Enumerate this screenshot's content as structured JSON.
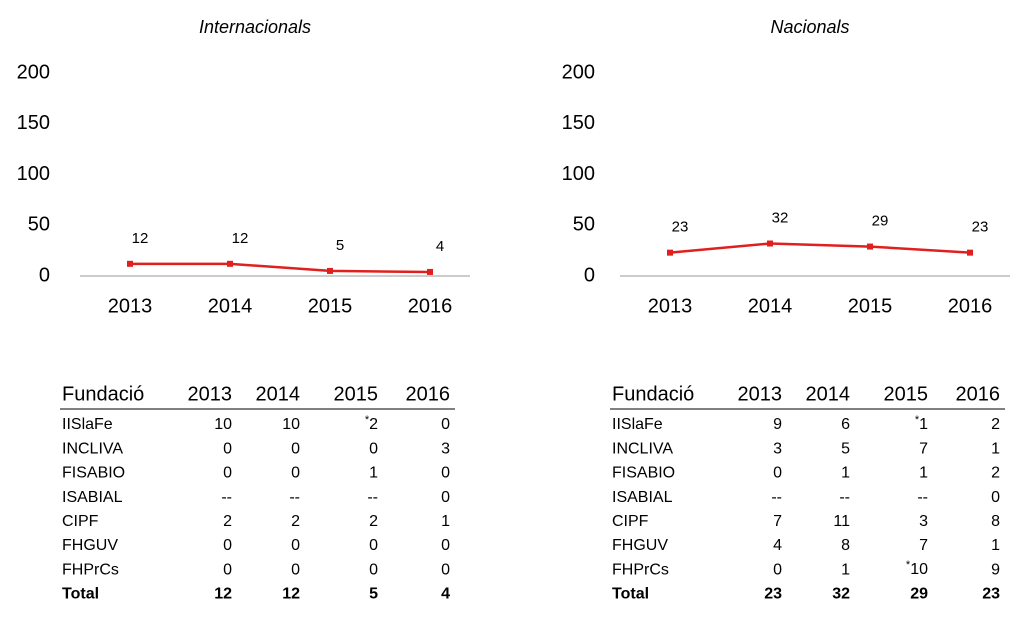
{
  "chart_data": [
    {
      "type": "line",
      "title": "Internacionals",
      "categories": [
        "2013",
        "2014",
        "2015",
        "2016"
      ],
      "series": [
        {
          "name": "Internacionals",
          "color": "#e0201e",
          "values": [
            12,
            12,
            5,
            4
          ]
        }
      ],
      "ylim": [
        0,
        200
      ],
      "yticks": [
        0,
        50,
        100,
        150,
        200
      ],
      "grid": false
    },
    {
      "type": "line",
      "title": "Nacionals",
      "categories": [
        "2013",
        "2014",
        "2015",
        "2016"
      ],
      "series": [
        {
          "name": "Nacionals",
          "color": "#e0201e",
          "values": [
            23,
            32,
            29,
            23
          ]
        }
      ],
      "ylim": [
        0,
        200
      ],
      "yticks": [
        0,
        50,
        100,
        150,
        200
      ],
      "grid": false
    }
  ],
  "tables": [
    {
      "header": [
        "Fundació",
        "2013",
        "2014",
        "2015",
        "2016"
      ],
      "rows": [
        [
          "IISlaFe",
          "10",
          "10",
          {
            "note": "*",
            "text": "2"
          },
          "0"
        ],
        [
          "INCLIVA",
          "0",
          "0",
          "0",
          "3"
        ],
        [
          "FISABIO",
          "0",
          "0",
          "1",
          "0"
        ],
        [
          "ISABIAL",
          "--",
          "--",
          "--",
          "0"
        ],
        [
          "CIPF",
          "2",
          "2",
          "2",
          "1"
        ],
        [
          "FHGUV",
          "0",
          "0",
          "0",
          "0"
        ],
        [
          "FHPrCs",
          "0",
          "0",
          "0",
          "0"
        ],
        [
          "Total",
          "12",
          "12",
          "5",
          "4"
        ]
      ]
    },
    {
      "header": [
        "Fundació",
        "2013",
        "2014",
        "2015",
        "2016"
      ],
      "rows": [
        [
          "IISlaFe",
          "9",
          "6",
          {
            "note": "*",
            "text": "1"
          },
          "2"
        ],
        [
          "INCLIVA",
          "3",
          "5",
          "7",
          "1"
        ],
        [
          "FISABIO",
          "0",
          "1",
          "1",
          "2"
        ],
        [
          "ISABIAL",
          "--",
          "--",
          "--",
          "0"
        ],
        [
          "CIPF",
          "7",
          "11",
          "3",
          "8"
        ],
        [
          "FHGUV",
          "4",
          "8",
          "7",
          "1"
        ],
        [
          "FHPrCs",
          "0",
          "1",
          {
            "note": "*",
            "text": "10"
          },
          "9"
        ],
        [
          "Total",
          "23",
          "32",
          "29",
          "23"
        ]
      ]
    }
  ]
}
